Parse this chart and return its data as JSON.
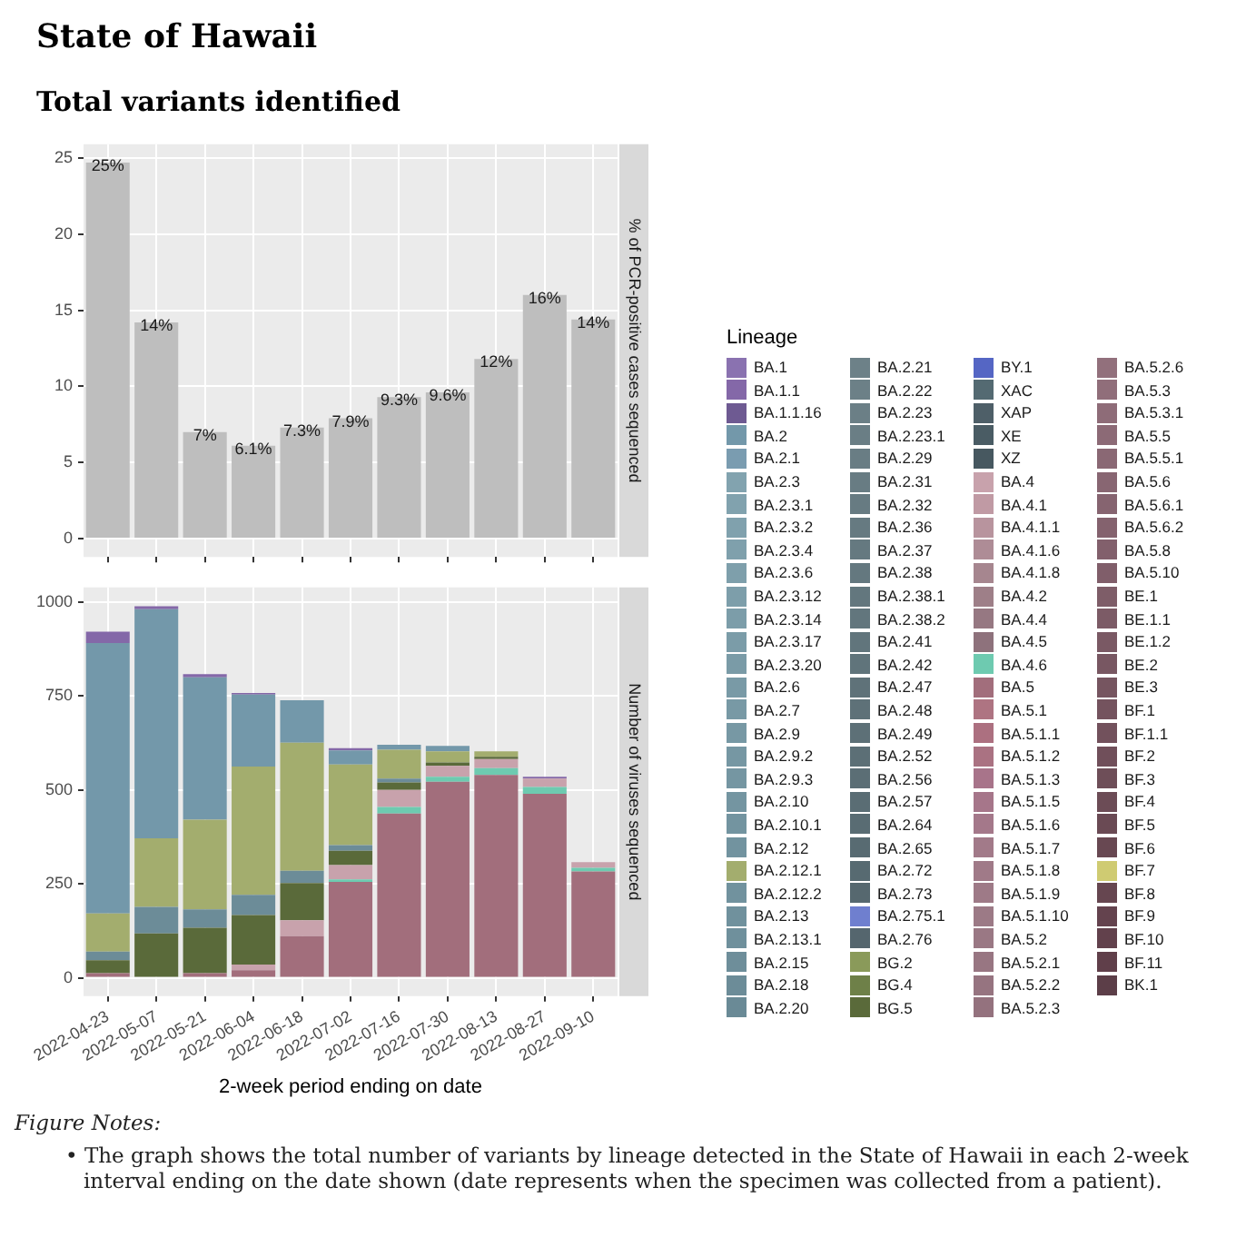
{
  "chart_data": [
    {
      "type": "bar",
      "title": "State of Hawaii",
      "subtitle": "Total variants identified",
      "ylabel": "% of PCR-positive cases sequenced",
      "categories": [
        "2022-04-23",
        "2022-05-07",
        "2022-05-21",
        "2022-06-04",
        "2022-06-18",
        "2022-07-02",
        "2022-07-16",
        "2022-07-30",
        "2022-08-13",
        "2022-08-27",
        "2022-09-10"
      ],
      "values": [
        24.7,
        14.2,
        7.0,
        6.1,
        7.3,
        7.9,
        9.3,
        9.6,
        11.8,
        16.0,
        14.4
      ],
      "value_labels": [
        "25%",
        "14%",
        "7%",
        "6.1%",
        "7.3%",
        "7.9%",
        "9.3%",
        "9.6%",
        "12%",
        "16%",
        "14%"
      ],
      "color": "#bebebe",
      "ylim": [
        -1.2,
        25.9
      ],
      "yticks": [
        0,
        5,
        10,
        15,
        20,
        25
      ],
      "grid": true,
      "tick_labels": "y"
    },
    {
      "type": "bar",
      "stacked": true,
      "xlabel": "2-week period ending on date",
      "ylabel": "Number of viruses sequenced",
      "legend_title": "Lineage",
      "legend": "right",
      "categories": [
        "2022-04-23",
        "2022-05-07",
        "2022-05-21",
        "2022-06-04",
        "2022-06-18",
        "2022-07-02",
        "2022-07-16",
        "2022-07-30",
        "2022-08-13",
        "2022-08-27",
        "2022-09-10"
      ],
      "ylim": [
        -49,
        1039
      ],
      "yticks": [
        0,
        250,
        500,
        750,
        1000
      ],
      "grid": true,
      "annotations": [
        "Figure Notes:",
        "• The graph shows the total number of variants by lineage detected in the State of Hawaii in each 2-week interval ending on the date shown (date represents when the specimen was collected from a patient)."
      ],
      "series": [
        {
          "name": "BK.1",
          "color": "#5c3e48",
          "values": [
            null,
            null,
            null,
            null,
            null,
            null,
            null,
            null,
            null,
            null,
            null
          ]
        },
        {
          "name": "BF.11",
          "color": "#603f4a",
          "values": [
            null,
            null,
            null,
            null,
            null,
            null,
            null,
            null,
            null,
            null,
            null
          ]
        },
        {
          "name": "BF.10",
          "color": "#62414c",
          "values": [
            null,
            null,
            null,
            null,
            null,
            null,
            null,
            null,
            null,
            null,
            null
          ]
        },
        {
          "name": "BF.9",
          "color": "#64434e",
          "values": [
            null,
            null,
            null,
            null,
            null,
            null,
            null,
            null,
            null,
            null,
            null
          ]
        },
        {
          "name": "BF.8",
          "color": "#664650",
          "values": [
            null,
            null,
            null,
            null,
            null,
            null,
            null,
            null,
            null,
            null,
            null
          ]
        },
        {
          "name": "BF.7",
          "color": "#cfcb72",
          "values": [
            null,
            null,
            null,
            null,
            null,
            null,
            null,
            null,
            null,
            null,
            null
          ]
        },
        {
          "name": "BF.6",
          "color": "#684852",
          "values": [
            null,
            null,
            null,
            null,
            null,
            null,
            null,
            null,
            null,
            null,
            null
          ]
        },
        {
          "name": "BF.5",
          "color": "#6a4a54",
          "values": [
            null,
            null,
            null,
            null,
            null,
            null,
            null,
            null,
            null,
            null,
            null
          ]
        },
        {
          "name": "BF.4",
          "color": "#6c4c56",
          "values": [
            null,
            null,
            null,
            null,
            null,
            null,
            null,
            null,
            null,
            null,
            null
          ]
        },
        {
          "name": "BF.3",
          "color": "#6e4e58",
          "values": [
            null,
            null,
            null,
            null,
            null,
            null,
            null,
            null,
            null,
            null,
            null
          ]
        },
        {
          "name": "BF.2",
          "color": "#704f5a",
          "values": [
            null,
            null,
            null,
            null,
            null,
            null,
            null,
            null,
            null,
            null,
            null
          ]
        },
        {
          "name": "BF.1.1",
          "color": "#72515c",
          "values": [
            null,
            null,
            null,
            null,
            null,
            null,
            null,
            null,
            null,
            null,
            null
          ]
        },
        {
          "name": "BF.1",
          "color": "#74535e",
          "values": [
            null,
            null,
            null,
            null,
            null,
            null,
            null,
            null,
            null,
            null,
            null
          ]
        },
        {
          "name": "BE.3",
          "color": "#765560",
          "values": [
            null,
            null,
            null,
            null,
            null,
            null,
            null,
            null,
            null,
            null,
            null
          ]
        },
        {
          "name": "BE.2",
          "color": "#785762",
          "values": [
            null,
            null,
            null,
            null,
            null,
            null,
            null,
            null,
            null,
            null,
            null
          ]
        },
        {
          "name": "BE.1.2",
          "color": "#7a5964",
          "values": [
            null,
            null,
            null,
            null,
            null,
            null,
            null,
            null,
            null,
            null,
            null
          ]
        },
        {
          "name": "BE.1.1",
          "color": "#7c5b66",
          "values": [
            null,
            null,
            null,
            null,
            null,
            null,
            null,
            null,
            null,
            null,
            null
          ]
        },
        {
          "name": "BE.1",
          "color": "#7e5d68",
          "values": [
            null,
            null,
            null,
            null,
            null,
            null,
            null,
            null,
            null,
            null,
            null
          ]
        },
        {
          "name": "BA.5.10",
          "color": "#805e6a",
          "values": [
            null,
            null,
            null,
            null,
            null,
            null,
            null,
            null,
            null,
            null,
            null
          ]
        },
        {
          "name": "BA.5.8",
          "color": "#82606c",
          "values": [
            null,
            null,
            null,
            null,
            null,
            null,
            null,
            null,
            null,
            null,
            null
          ]
        },
        {
          "name": "BA.5.6.2",
          "color": "#84626e",
          "values": [
            null,
            null,
            null,
            null,
            null,
            null,
            null,
            null,
            null,
            null,
            null
          ]
        },
        {
          "name": "BA.5.6.1",
          "color": "#866470",
          "values": [
            null,
            null,
            null,
            null,
            null,
            null,
            null,
            null,
            null,
            null,
            null
          ]
        },
        {
          "name": "BA.5.6",
          "color": "#886672",
          "values": [
            null,
            null,
            null,
            null,
            null,
            null,
            null,
            null,
            null,
            null,
            null
          ]
        },
        {
          "name": "BA.5.5.1",
          "color": "#8a6874",
          "values": [
            null,
            null,
            null,
            null,
            null,
            null,
            null,
            null,
            null,
            null,
            null
          ]
        },
        {
          "name": "BA.5.5",
          "color": "#8c6a76",
          "values": [
            null,
            null,
            null,
            null,
            null,
            null,
            null,
            null,
            null,
            null,
            null
          ]
        },
        {
          "name": "BA.5.3.1",
          "color": "#8e6c78",
          "values": [
            null,
            null,
            null,
            null,
            null,
            null,
            null,
            null,
            null,
            null,
            null
          ]
        },
        {
          "name": "BA.5.3",
          "color": "#906e7a",
          "values": [
            null,
            null,
            null,
            null,
            null,
            null,
            null,
            null,
            null,
            null,
            null
          ]
        },
        {
          "name": "BA.5.2.6",
          "color": "#92707c",
          "values": [
            null,
            null,
            null,
            null,
            null,
            null,
            null,
            null,
            null,
            null,
            null
          ]
        },
        {
          "name": "BA.5.2.3",
          "color": "#94727e",
          "values": [
            null,
            null,
            null,
            null,
            null,
            null,
            null,
            null,
            null,
            null,
            null
          ]
        },
        {
          "name": "BA.5.2.2",
          "color": "#967480",
          "values": [
            null,
            null,
            null,
            null,
            null,
            null,
            null,
            null,
            null,
            null,
            null
          ]
        },
        {
          "name": "BA.5.2.1",
          "color": "#987682",
          "values": [
            null,
            null,
            null,
            null,
            null,
            null,
            null,
            null,
            null,
            null,
            null
          ]
        },
        {
          "name": "BA.5.2",
          "color": "#9a7884",
          "values": [
            null,
            null,
            null,
            null,
            null,
            null,
            null,
            null,
            null,
            null,
            null
          ]
        },
        {
          "name": "BA.5.1.10",
          "color": "#9c7a86",
          "values": [
            null,
            null,
            null,
            null,
            null,
            null,
            null,
            null,
            null,
            null,
            null
          ]
        },
        {
          "name": "BA.5.1.9",
          "color": "#9e7a87",
          "values": [
            null,
            null,
            null,
            null,
            null,
            null,
            null,
            null,
            null,
            null,
            null
          ]
        },
        {
          "name": "BA.5.1.8",
          "color": "#a07a88",
          "values": [
            null,
            null,
            null,
            null,
            null,
            null,
            null,
            null,
            null,
            null,
            null
          ]
        },
        {
          "name": "BA.5.1.7",
          "color": "#a27a89",
          "values": [
            null,
            null,
            null,
            null,
            null,
            null,
            null,
            null,
            null,
            null,
            null
          ]
        },
        {
          "name": "BA.5.1.6",
          "color": "#a4788a",
          "values": [
            null,
            null,
            null,
            null,
            null,
            null,
            null,
            null,
            null,
            null,
            null
          ]
        },
        {
          "name": "BA.5.1.5",
          "color": "#a6768a",
          "values": [
            null,
            null,
            null,
            null,
            null,
            null,
            null,
            null,
            null,
            null,
            null
          ]
        },
        {
          "name": "BA.5.1.3",
          "color": "#a8748a",
          "values": [
            null,
            null,
            null,
            null,
            null,
            null,
            null,
            null,
            null,
            null,
            null
          ]
        },
        {
          "name": "BA.5.1.2",
          "color": "#aa7282",
          "values": [
            null,
            null,
            null,
            null,
            null,
            null,
            null,
            null,
            null,
            null,
            null
          ]
        },
        {
          "name": "BA.5.1.1",
          "color": "#ac7080",
          "values": [
            null,
            null,
            null,
            null,
            null,
            null,
            null,
            null,
            null,
            null,
            null
          ]
        },
        {
          "name": "BA.5.1",
          "color": "#ae7482",
          "values": [
            null,
            null,
            null,
            null,
            null,
            null,
            null,
            null,
            null,
            null,
            null
          ]
        },
        {
          "name": "BA.5",
          "color": "#a26e7c",
          "values": [
            12,
            null,
            12,
            20,
            111,
            255,
            437,
            522,
            540,
            490,
            283
          ]
        },
        {
          "name": "BA.4.6",
          "color": "#6ecab0",
          "values": [
            null,
            null,
            null,
            null,
            null,
            7,
            18,
            13,
            18,
            18,
            10
          ]
        },
        {
          "name": "BA.4.5",
          "color": "#8e727c",
          "values": [
            null,
            null,
            null,
            null,
            null,
            null,
            null,
            null,
            null,
            null,
            null
          ]
        },
        {
          "name": "BA.4.4",
          "color": "#967882",
          "values": [
            null,
            null,
            null,
            null,
            null,
            null,
            null,
            null,
            null,
            null,
            null
          ]
        },
        {
          "name": "BA.4.2",
          "color": "#9e7f88",
          "values": [
            null,
            null,
            null,
            null,
            null,
            null,
            null,
            null,
            null,
            null,
            null
          ]
        },
        {
          "name": "BA.4.1.8",
          "color": "#a6868f",
          "values": [
            null,
            null,
            null,
            null,
            null,
            null,
            null,
            null,
            null,
            null,
            null
          ]
        },
        {
          "name": "BA.4.1.6",
          "color": "#ae8c96",
          "values": [
            null,
            null,
            null,
            null,
            null,
            null,
            null,
            null,
            null,
            null,
            null
          ]
        },
        {
          "name": "BA.4.1.1",
          "color": "#b8949e",
          "values": [
            null,
            null,
            null,
            null,
            null,
            null,
            null,
            null,
            null,
            null,
            null
          ]
        },
        {
          "name": "BA.4.1",
          "color": "#c09aa4",
          "values": [
            null,
            null,
            null,
            null,
            null,
            null,
            null,
            null,
            null,
            null,
            null
          ]
        },
        {
          "name": "BA.4",
          "color": "#c8a2ac",
          "values": [
            null,
            null,
            null,
            15,
            42,
            38,
            45,
            29,
            24,
            22,
            15
          ]
        },
        {
          "name": "XZ",
          "color": "#475860",
          "values": [
            null,
            null,
            null,
            null,
            null,
            null,
            null,
            null,
            null,
            null,
            null
          ]
        },
        {
          "name": "XE",
          "color": "#4a5c64",
          "values": [
            null,
            null,
            null,
            null,
            null,
            null,
            null,
            null,
            null,
            null,
            null
          ]
        },
        {
          "name": "XAP",
          "color": "#4e5f68",
          "values": [
            null,
            null,
            null,
            null,
            null,
            null,
            null,
            null,
            null,
            null,
            null
          ]
        },
        {
          "name": "XAC",
          "color": "#546a72",
          "values": [
            null,
            null,
            null,
            null,
            null,
            null,
            null,
            null,
            null,
            null,
            null
          ]
        },
        {
          "name": "BY.1",
          "color": "#5566c4",
          "values": [
            null,
            null,
            null,
            null,
            null,
            null,
            null,
            null,
            null,
            null,
            null
          ]
        },
        {
          "name": "BG.5",
          "color": "#5a6a3a",
          "values": [
            35,
            118,
            121,
            132,
            99,
            38,
            20,
            9,
            6,
            null,
            null
          ]
        },
        {
          "name": "BG.4",
          "color": "#6e8048",
          "values": [
            null,
            null,
            null,
            null,
            null,
            null,
            null,
            null,
            null,
            null,
            null
          ]
        },
        {
          "name": "BG.2",
          "color": "#8a9a5a",
          "values": [
            null,
            null,
            null,
            null,
            null,
            null,
            null,
            null,
            null,
            null,
            null
          ]
        },
        {
          "name": "BA.2.76",
          "color": "#55666e",
          "values": [
            null,
            null,
            null,
            null,
            null,
            null,
            null,
            null,
            null,
            null,
            null
          ]
        },
        {
          "name": "BA.2.75.1",
          "color": "#6f7fcf",
          "values": [
            null,
            null,
            null,
            null,
            null,
            null,
            null,
            null,
            null,
            null,
            null
          ]
        },
        {
          "name": "BA.2.73",
          "color": "#56686f",
          "values": [
            null,
            null,
            null,
            null,
            null,
            null,
            null,
            null,
            null,
            null,
            null
          ]
        },
        {
          "name": "BA.2.72",
          "color": "#576a71",
          "values": [
            null,
            null,
            null,
            null,
            null,
            null,
            null,
            null,
            null,
            null,
            null
          ]
        },
        {
          "name": "BA.2.65",
          "color": "#586b72",
          "values": [
            null,
            null,
            null,
            null,
            null,
            null,
            null,
            null,
            null,
            null,
            null
          ]
        },
        {
          "name": "BA.2.64",
          "color": "#596c73",
          "values": [
            null,
            null,
            null,
            null,
            null,
            null,
            null,
            null,
            null,
            null,
            null
          ]
        },
        {
          "name": "BA.2.57",
          "color": "#5a6d74",
          "values": [
            null,
            null,
            null,
            null,
            null,
            null,
            null,
            null,
            null,
            null,
            null
          ]
        },
        {
          "name": "BA.2.56",
          "color": "#5b6e75",
          "values": [
            null,
            null,
            null,
            null,
            null,
            null,
            null,
            null,
            null,
            null,
            null
          ]
        },
        {
          "name": "BA.2.52",
          "color": "#5c6f76",
          "values": [
            null,
            null,
            null,
            null,
            null,
            null,
            null,
            null,
            null,
            null,
            null
          ]
        },
        {
          "name": "BA.2.49",
          "color": "#5d7077",
          "values": [
            null,
            null,
            null,
            null,
            null,
            null,
            null,
            null,
            null,
            null,
            null
          ]
        },
        {
          "name": "BA.2.48",
          "color": "#5e7178",
          "values": [
            null,
            null,
            null,
            null,
            null,
            null,
            null,
            null,
            null,
            null,
            null
          ]
        },
        {
          "name": "BA.2.47",
          "color": "#5f7279",
          "values": [
            null,
            null,
            null,
            null,
            null,
            null,
            null,
            null,
            null,
            null,
            null
          ]
        },
        {
          "name": "BA.2.42",
          "color": "#60747b",
          "values": [
            null,
            null,
            null,
            null,
            null,
            null,
            null,
            null,
            null,
            null,
            null
          ]
        },
        {
          "name": "BA.2.41",
          "color": "#61757c",
          "values": [
            null,
            null,
            null,
            null,
            null,
            null,
            null,
            null,
            null,
            null,
            null
          ]
        },
        {
          "name": "BA.2.38.2",
          "color": "#62767d",
          "values": [
            null,
            null,
            null,
            null,
            null,
            null,
            null,
            null,
            null,
            null,
            null
          ]
        },
        {
          "name": "BA.2.38.1",
          "color": "#63777e",
          "values": [
            null,
            null,
            null,
            null,
            null,
            null,
            null,
            null,
            null,
            null,
            null
          ]
        },
        {
          "name": "BA.2.38",
          "color": "#64787f",
          "values": [
            null,
            null,
            null,
            null,
            null,
            null,
            null,
            null,
            null,
            null,
            null
          ]
        },
        {
          "name": "BA.2.37",
          "color": "#657980",
          "values": [
            null,
            null,
            null,
            null,
            null,
            null,
            null,
            null,
            null,
            null,
            null
          ]
        },
        {
          "name": "BA.2.36",
          "color": "#667a81",
          "values": [
            null,
            null,
            null,
            null,
            null,
            null,
            null,
            null,
            null,
            null,
            null
          ]
        },
        {
          "name": "BA.2.32",
          "color": "#677b82",
          "values": [
            null,
            null,
            null,
            null,
            null,
            null,
            null,
            null,
            null,
            null,
            null
          ]
        },
        {
          "name": "BA.2.31",
          "color": "#687c83",
          "values": [
            null,
            null,
            null,
            null,
            null,
            null,
            null,
            null,
            null,
            null,
            null
          ]
        },
        {
          "name": "BA.2.29",
          "color": "#697d84",
          "values": [
            null,
            null,
            null,
            null,
            null,
            null,
            null,
            null,
            null,
            null,
            null
          ]
        },
        {
          "name": "BA.2.23.1",
          "color": "#6a7e85",
          "values": [
            null,
            null,
            null,
            null,
            null,
            null,
            null,
            null,
            null,
            null,
            null
          ]
        },
        {
          "name": "BA.2.23",
          "color": "#6b7f86",
          "values": [
            null,
            null,
            null,
            null,
            null,
            null,
            null,
            null,
            null,
            null,
            null
          ]
        },
        {
          "name": "BA.2.22",
          "color": "#6c8087",
          "values": [
            null,
            null,
            null,
            null,
            null,
            null,
            null,
            null,
            null,
            null,
            null
          ]
        },
        {
          "name": "BA.2.21",
          "color": "#6d8188",
          "values": [
            null,
            null,
            null,
            null,
            null,
            null,
            null,
            null,
            null,
            null,
            null
          ]
        },
        {
          "name": "BA.2.20",
          "color": "#6a8a96",
          "values": [
            null,
            null,
            null,
            null,
            null,
            null,
            null,
            null,
            null,
            null,
            null
          ]
        },
        {
          "name": "BA.2.18",
          "color": "#6c8c98",
          "values": [
            23,
            71,
            49,
            54,
            33,
            15,
            10,
            null,
            null,
            null,
            null
          ]
        },
        {
          "name": "BA.2.15",
          "color": "#6e8e9a",
          "values": [
            null,
            null,
            null,
            null,
            null,
            null,
            null,
            null,
            null,
            null,
            null
          ]
        },
        {
          "name": "BA.2.13.1",
          "color": "#6f909c",
          "values": [
            null,
            null,
            null,
            null,
            null,
            null,
            null,
            null,
            null,
            null,
            null
          ]
        },
        {
          "name": "BA.2.13",
          "color": "#70919d",
          "values": [
            null,
            null,
            null,
            null,
            null,
            null,
            null,
            null,
            null,
            null,
            null
          ]
        },
        {
          "name": "BA.2.12.2",
          "color": "#71929e",
          "values": [
            null,
            null,
            null,
            null,
            null,
            null,
            null,
            null,
            null,
            null,
            null
          ]
        },
        {
          "name": "BA.2.12.1",
          "color": "#a3ad6e",
          "values": [
            101,
            182,
            239,
            341,
            341,
            215,
            77,
            30,
            15,
            null,
            null
          ]
        },
        {
          "name": "BA.2.12",
          "color": "#72939f",
          "values": [
            null,
            null,
            null,
            null,
            null,
            null,
            null,
            null,
            null,
            null,
            null
          ]
        },
        {
          "name": "BA.2.10.1",
          "color": "#7394a0",
          "values": [
            null,
            null,
            null,
            null,
            null,
            null,
            null,
            null,
            null,
            null,
            null
          ]
        },
        {
          "name": "BA.2.10",
          "color": "#7495a1",
          "values": [
            null,
            null,
            null,
            null,
            null,
            null,
            null,
            null,
            null,
            null,
            null
          ]
        },
        {
          "name": "BA.2.9.3",
          "color": "#7596a2",
          "values": [
            null,
            null,
            null,
            null,
            null,
            null,
            null,
            null,
            null,
            null,
            null
          ]
        },
        {
          "name": "BA.2.9.2",
          "color": "#7697a3",
          "values": [
            null,
            null,
            null,
            null,
            null,
            null,
            null,
            null,
            null,
            null,
            null
          ]
        },
        {
          "name": "BA.2.9",
          "color": "#7798a4",
          "values": [
            null,
            null,
            null,
            null,
            null,
            null,
            null,
            null,
            null,
            null,
            null
          ]
        },
        {
          "name": "BA.2.7",
          "color": "#7899a5",
          "values": [
            null,
            null,
            null,
            null,
            null,
            null,
            null,
            null,
            null,
            null,
            null
          ]
        },
        {
          "name": "BA.2.6",
          "color": "#799aa6",
          "values": [
            null,
            null,
            null,
            null,
            null,
            null,
            null,
            null,
            null,
            null,
            null
          ]
        },
        {
          "name": "BA.2.3.20",
          "color": "#7a9ba7",
          "values": [
            null,
            null,
            null,
            null,
            null,
            null,
            null,
            null,
            null,
            null,
            null
          ]
        },
        {
          "name": "BA.2.3.17",
          "color": "#7b9ca8",
          "values": [
            null,
            null,
            null,
            null,
            null,
            null,
            null,
            null,
            null,
            null,
            null
          ]
        },
        {
          "name": "BA.2.3.14",
          "color": "#7c9da9",
          "values": [
            null,
            null,
            null,
            null,
            null,
            null,
            null,
            null,
            null,
            null,
            null
          ]
        },
        {
          "name": "BA.2.3.12",
          "color": "#7d9eaa",
          "values": [
            null,
            null,
            null,
            null,
            null,
            null,
            null,
            null,
            null,
            null,
            null
          ]
        },
        {
          "name": "BA.2.3.6",
          "color": "#7e9fab",
          "values": [
            null,
            null,
            null,
            null,
            null,
            null,
            null,
            null,
            null,
            null,
            null
          ]
        },
        {
          "name": "BA.2.3.4",
          "color": "#7fa0ac",
          "values": [
            null,
            null,
            null,
            null,
            null,
            null,
            null,
            null,
            null,
            null,
            null
          ]
        },
        {
          "name": "BA.2.3.2",
          "color": "#80a1ad",
          "values": [
            null,
            null,
            null,
            null,
            null,
            null,
            null,
            null,
            null,
            null,
            null
          ]
        },
        {
          "name": "BA.2.3.1",
          "color": "#81a2ae",
          "values": [
            null,
            null,
            null,
            null,
            null,
            null,
            null,
            null,
            null,
            null,
            null
          ]
        },
        {
          "name": "BA.2.3",
          "color": "#82a3af",
          "values": [
            null,
            null,
            null,
            null,
            null,
            null,
            null,
            null,
            null,
            null,
            null
          ]
        },
        {
          "name": "BA.2.1",
          "color": "#7a9cb0",
          "values": [
            null,
            null,
            null,
            null,
            null,
            null,
            null,
            null,
            null,
            null,
            null
          ]
        },
        {
          "name": "BA.2",
          "color": "#7398aa",
          "values": [
            720,
            610,
            379,
            192,
            113,
            37,
            13,
            14,
            null,
            null,
            null
          ]
        },
        {
          "name": "BA.1.1.16",
          "color": "#6e5a92",
          "values": [
            null,
            null,
            null,
            null,
            null,
            null,
            null,
            null,
            null,
            null,
            null
          ]
        },
        {
          "name": "BA.1.1",
          "color": "#8468a8",
          "values": [
            30,
            8,
            8,
            4,
            null,
            6,
            null,
            null,
            null,
            5,
            null
          ]
        },
        {
          "name": "BA.1",
          "color": "#8a72b0",
          "values": [
            null,
            null,
            null,
            null,
            null,
            null,
            null,
            null,
            null,
            null,
            null
          ]
        }
      ]
    }
  ]
}
